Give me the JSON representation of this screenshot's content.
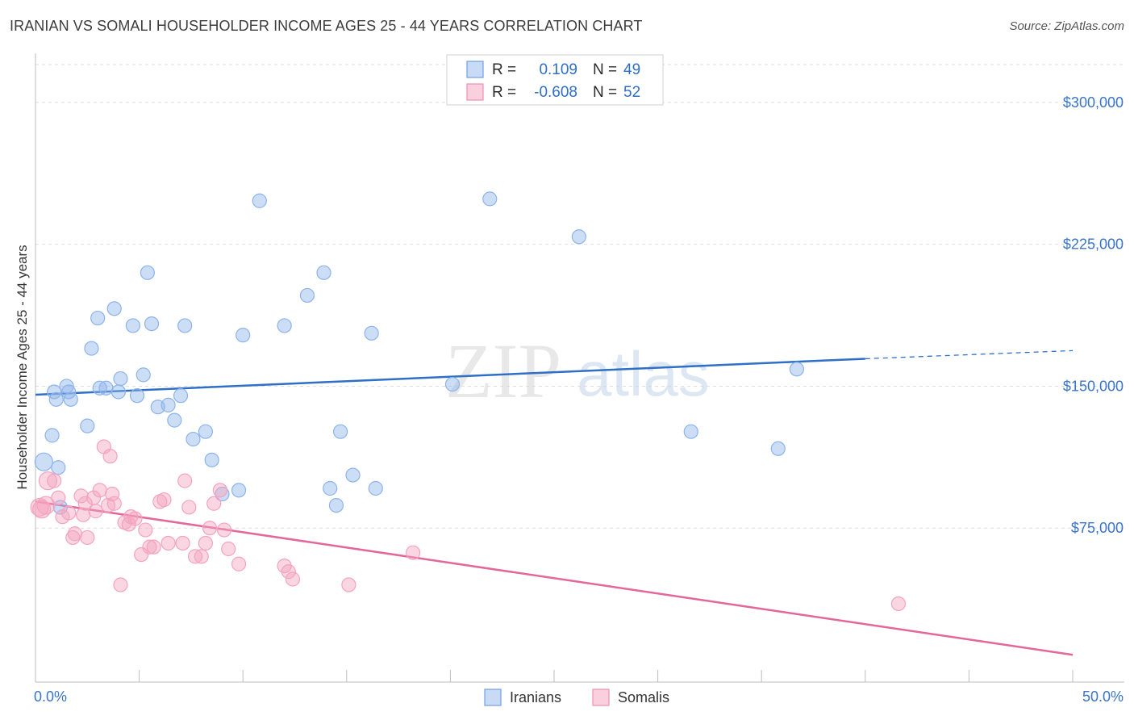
{
  "title": "IRANIAN VS SOMALI HOUSEHOLDER INCOME AGES 25 - 44 YEARS CORRELATION CHART",
  "source": "Source: ZipAtlas.com",
  "watermark": {
    "zip": "ZIP",
    "atlas": "atlas"
  },
  "legend_top": [
    {
      "r_label": "R =",
      "r_value": "0.109",
      "n_label": "N =",
      "n_value": "49",
      "color": "#6fa0e6"
    },
    {
      "r_label": "R =",
      "r_value": "-0.608",
      "n_label": "N =",
      "n_value": "52",
      "color": "#f08fb0"
    }
  ],
  "legend_bottom": [
    "Iranians",
    "Somalis"
  ],
  "chart_data": {
    "type": "scatter",
    "title": "IRANIAN VS SOMALI HOUSEHOLDER INCOME AGES 25 - 44 YEARS CORRELATION CHART",
    "xlabel": "",
    "ylabel": "Householder Income Ages 25 - 44 years",
    "xlim": [
      0,
      50
    ],
    "ylim": [
      0,
      320000
    ],
    "x_tick_labels": [
      "0.0%",
      "50.0%"
    ],
    "y_ticks": [
      75000,
      150000,
      225000,
      300000
    ],
    "y_tick_labels": [
      "$75,000",
      "$150,000",
      "$225,000",
      "$300,000"
    ],
    "grid": true,
    "legend_position": "top-center",
    "series": [
      {
        "name": "Iranians",
        "color": "#8db4ea",
        "trend_color": "#2f6fc7",
        "trend": {
          "x": [
            0,
            40
          ],
          "y": [
            145500,
            164500
          ],
          "dashed_to": [
            50,
            168800
          ]
        },
        "points": [
          [
            0.4,
            110000
          ],
          [
            0.8,
            124000
          ],
          [
            0.9,
            147000
          ],
          [
            1.0,
            143000
          ],
          [
            1.1,
            107000
          ],
          [
            1.2,
            86000
          ],
          [
            1.5,
            150000
          ],
          [
            1.6,
            147000
          ],
          [
            1.7,
            143000
          ],
          [
            2.5,
            129000
          ],
          [
            2.7,
            170000
          ],
          [
            3.0,
            186000
          ],
          [
            3.1,
            149000
          ],
          [
            3.4,
            149000
          ],
          [
            3.8,
            191000
          ],
          [
            4.0,
            147000
          ],
          [
            4.1,
            154000
          ],
          [
            4.7,
            182000
          ],
          [
            4.9,
            145000
          ],
          [
            5.2,
            156000
          ],
          [
            5.4,
            210000
          ],
          [
            5.6,
            183000
          ],
          [
            5.9,
            139000
          ],
          [
            6.4,
            140000
          ],
          [
            6.7,
            132000
          ],
          [
            7.0,
            145000
          ],
          [
            7.2,
            182000
          ],
          [
            7.6,
            122000
          ],
          [
            8.2,
            126000
          ],
          [
            8.5,
            111000
          ],
          [
            9.0,
            93000
          ],
          [
            9.8,
            95000
          ],
          [
            10.0,
            177000
          ],
          [
            10.8,
            248000
          ],
          [
            12.0,
            182000
          ],
          [
            13.1,
            198000
          ],
          [
            13.9,
            210000
          ],
          [
            14.2,
            96000
          ],
          [
            14.5,
            87000
          ],
          [
            14.7,
            126000
          ],
          [
            15.3,
            103000
          ],
          [
            16.2,
            178000
          ],
          [
            16.4,
            96000
          ],
          [
            20.1,
            151000
          ],
          [
            21.9,
            249000
          ],
          [
            26.2,
            229000
          ],
          [
            31.6,
            126000
          ],
          [
            35.8,
            117000
          ],
          [
            36.7,
            159000
          ]
        ]
      },
      {
        "name": "Somalis",
        "color": "#f4a3be",
        "trend_color": "#e3679a",
        "trend": {
          "x": [
            0,
            50
          ],
          "y": [
            89000,
            8000
          ]
        },
        "points": [
          [
            0.3,
            85000
          ],
          [
            0.5,
            87000
          ],
          [
            0.6,
            100000
          ],
          [
            0.9,
            100000
          ],
          [
            1.1,
            91000
          ],
          [
            1.3,
            81000
          ],
          [
            1.6,
            83000
          ],
          [
            1.8,
            70000
          ],
          [
            1.9,
            72000
          ],
          [
            2.2,
            92000
          ],
          [
            2.3,
            82000
          ],
          [
            2.4,
            88000
          ],
          [
            2.5,
            70000
          ],
          [
            2.8,
            91000
          ],
          [
            2.9,
            84000
          ],
          [
            3.1,
            95000
          ],
          [
            3.3,
            118000
          ],
          [
            3.5,
            87000
          ],
          [
            3.6,
            113000
          ],
          [
            3.7,
            93000
          ],
          [
            3.8,
            88000
          ],
          [
            4.1,
            45000
          ],
          [
            4.3,
            78000
          ],
          [
            4.5,
            77000
          ],
          [
            4.6,
            81000
          ],
          [
            4.8,
            80000
          ],
          [
            5.1,
            61000
          ],
          [
            5.3,
            74000
          ],
          [
            5.5,
            65000
          ],
          [
            5.7,
            65000
          ],
          [
            6.0,
            89000
          ],
          [
            6.2,
            90000
          ],
          [
            6.4,
            67000
          ],
          [
            7.1,
            67000
          ],
          [
            7.2,
            100000
          ],
          [
            7.4,
            86000
          ],
          [
            7.7,
            60000
          ],
          [
            8.0,
            60000
          ],
          [
            8.2,
            67000
          ],
          [
            8.4,
            75000
          ],
          [
            8.6,
            88000
          ],
          [
            8.9,
            95000
          ],
          [
            9.1,
            74000
          ],
          [
            9.3,
            64000
          ],
          [
            9.8,
            56000
          ],
          [
            12.0,
            55000
          ],
          [
            12.2,
            52000
          ],
          [
            12.4,
            48000
          ],
          [
            15.1,
            45000
          ],
          [
            18.2,
            62000
          ],
          [
            41.6,
            35000
          ],
          [
            0.2,
            86000
          ]
        ]
      }
    ]
  }
}
